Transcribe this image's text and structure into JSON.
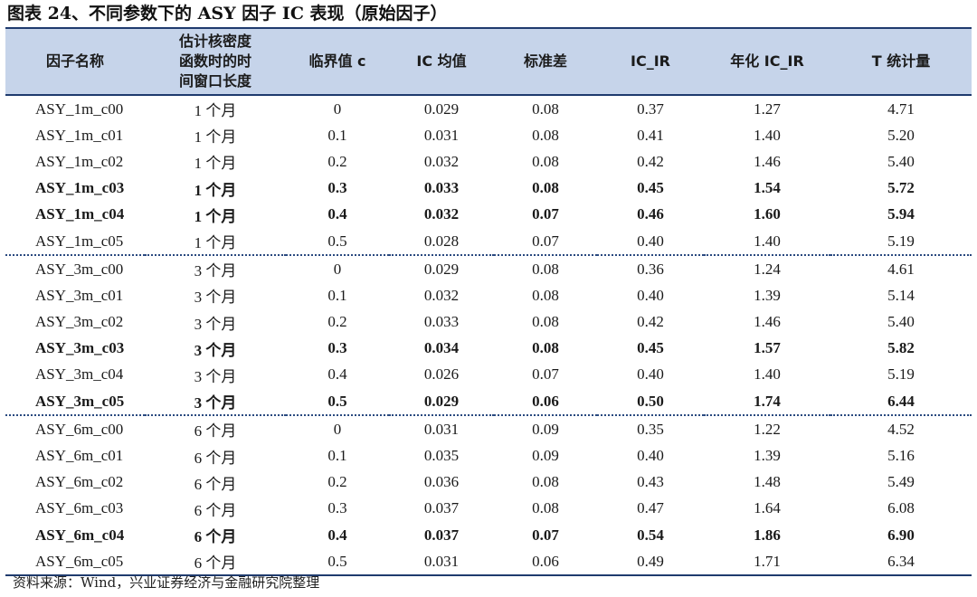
{
  "caption": "图表 24、不同参数下的 ASY 因子 IC 表现（原始因子）",
  "header": {
    "col1": "因子名称",
    "col2_line1": "估计核密度",
    "col2_line2": "函数时的时",
    "col2_line3": "间窗口长度",
    "col3": "临界值 c",
    "col4": "IC 均值",
    "col5": "标准差",
    "col6": "IC_IR",
    "col7": "年化 IC_IR",
    "col8": "T 统计量"
  },
  "rows": [
    {
      "name": "ASY_1m_c00",
      "window": "1 个月",
      "c": "0",
      "ic": "0.029",
      "std": "0.08",
      "icir": "0.37",
      "annual": "1.27",
      "t": "4.71",
      "bold": false,
      "group_start": false
    },
    {
      "name": "ASY_1m_c01",
      "window": "1 个月",
      "c": "0.1",
      "ic": "0.031",
      "std": "0.08",
      "icir": "0.41",
      "annual": "1.40",
      "t": "5.20",
      "bold": false,
      "group_start": false
    },
    {
      "name": "ASY_1m_c02",
      "window": "1 个月",
      "c": "0.2",
      "ic": "0.032",
      "std": "0.08",
      "icir": "0.42",
      "annual": "1.46",
      "t": "5.40",
      "bold": false,
      "group_start": false
    },
    {
      "name": "ASY_1m_c03",
      "window": "1 个月",
      "c": "0.3",
      "ic": "0.033",
      "std": "0.08",
      "icir": "0.45",
      "annual": "1.54",
      "t": "5.72",
      "bold": true,
      "group_start": false
    },
    {
      "name": "ASY_1m_c04",
      "window": "1 个月",
      "c": "0.4",
      "ic": "0.032",
      "std": "0.07",
      "icir": "0.46",
      "annual": "1.60",
      "t": "5.94",
      "bold": true,
      "group_start": false
    },
    {
      "name": "ASY_1m_c05",
      "window": "1 个月",
      "c": "0.5",
      "ic": "0.028",
      "std": "0.07",
      "icir": "0.40",
      "annual": "1.40",
      "t": "5.19",
      "bold": false,
      "group_start": false
    },
    {
      "name": "ASY_3m_c00",
      "window": "3 个月",
      "c": "0",
      "ic": "0.029",
      "std": "0.08",
      "icir": "0.36",
      "annual": "1.24",
      "t": "4.61",
      "bold": false,
      "group_start": true
    },
    {
      "name": "ASY_3m_c01",
      "window": "3 个月",
      "c": "0.1",
      "ic": "0.032",
      "std": "0.08",
      "icir": "0.40",
      "annual": "1.39",
      "t": "5.14",
      "bold": false,
      "group_start": false
    },
    {
      "name": "ASY_3m_c02",
      "window": "3 个月",
      "c": "0.2",
      "ic": "0.033",
      "std": "0.08",
      "icir": "0.42",
      "annual": "1.46",
      "t": "5.40",
      "bold": false,
      "group_start": false
    },
    {
      "name": "ASY_3m_c03",
      "window": "3 个月",
      "c": "0.3",
      "ic": "0.034",
      "std": "0.08",
      "icir": "0.45",
      "annual": "1.57",
      "t": "5.82",
      "bold": true,
      "group_start": false
    },
    {
      "name": "ASY_3m_c04",
      "window": "3 个月",
      "c": "0.4",
      "ic": "0.026",
      "std": "0.07",
      "icir": "0.40",
      "annual": "1.40",
      "t": "5.19",
      "bold": false,
      "group_start": false
    },
    {
      "name": "ASY_3m_c05",
      "window": "3 个月",
      "c": "0.5",
      "ic": "0.029",
      "std": "0.06",
      "icir": "0.50",
      "annual": "1.74",
      "t": "6.44",
      "bold": true,
      "group_start": false
    },
    {
      "name": "ASY_6m_c00",
      "window": "6 个月",
      "c": "0",
      "ic": "0.031",
      "std": "0.09",
      "icir": "0.35",
      "annual": "1.22",
      "t": "4.52",
      "bold": false,
      "group_start": true
    },
    {
      "name": "ASY_6m_c01",
      "window": "6 个月",
      "c": "0.1",
      "ic": "0.035",
      "std": "0.09",
      "icir": "0.40",
      "annual": "1.39",
      "t": "5.16",
      "bold": false,
      "group_start": false
    },
    {
      "name": "ASY_6m_c02",
      "window": "6 个月",
      "c": "0.2",
      "ic": "0.036",
      "std": "0.08",
      "icir": "0.43",
      "annual": "1.48",
      "t": "5.49",
      "bold": false,
      "group_start": false
    },
    {
      "name": "ASY_6m_c03",
      "window": "6 个月",
      "c": "0.3",
      "ic": "0.037",
      "std": "0.08",
      "icir": "0.47",
      "annual": "1.64",
      "t": "6.08",
      "bold": false,
      "group_start": false
    },
    {
      "name": "ASY_6m_c04",
      "window": "6 个月",
      "c": "0.4",
      "ic": "0.037",
      "std": "0.07",
      "icir": "0.54",
      "annual": "1.86",
      "t": "6.90",
      "bold": true,
      "group_start": false
    },
    {
      "name": "ASY_6m_c05",
      "window": "6 个月",
      "c": "0.5",
      "ic": "0.031",
      "std": "0.06",
      "icir": "0.49",
      "annual": "1.71",
      "t": "6.34",
      "bold": false,
      "group_start": false
    }
  ],
  "source": "资料来源：Wind，兴业证券经济与金融研究院整理",
  "colors": {
    "header_bg": "#c6d4ea",
    "rule": "#1f3b6e"
  }
}
